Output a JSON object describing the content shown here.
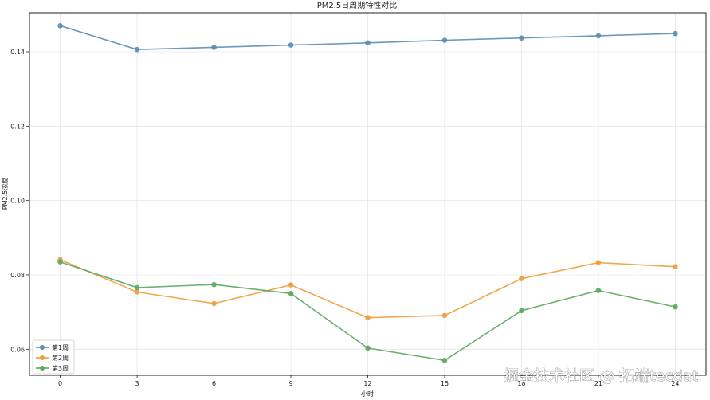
{
  "chart_data": {
    "type": "line",
    "title": "PM2.5日周期特性对比",
    "xlabel": "小时",
    "ylabel": "PM2.5浓度",
    "x": [
      0,
      3,
      6,
      9,
      12,
      15,
      18,
      21,
      24
    ],
    "x_ticks": [
      "0",
      "3",
      "6",
      "9",
      "12",
      "15",
      "18",
      "21",
      "24"
    ],
    "y_ticks": [
      "0.06",
      "0.08",
      "0.10",
      "0.12",
      "0.14"
    ],
    "ylim": [
      0.053,
      0.1505
    ],
    "xlim": [
      -1.2,
      25.2
    ],
    "grid": true,
    "legend_position": "lower-left",
    "series": [
      {
        "name": "第1周",
        "color": "#5b8db4",
        "values": [
          0.147,
          0.1406,
          0.1412,
          0.1418,
          0.1424,
          0.1431,
          0.1437,
          0.1443,
          0.1449
        ]
      },
      {
        "name": "第2周",
        "color": "#ef9d3c",
        "values": [
          0.0841,
          0.0754,
          0.0723,
          0.0773,
          0.0685,
          0.0691,
          0.079,
          0.0833,
          0.0822
        ]
      },
      {
        "name": "第3周",
        "color": "#5aa960",
        "values": [
          0.0835,
          0.0766,
          0.0774,
          0.075,
          0.0603,
          0.057,
          0.0704,
          0.0758,
          0.0714
        ]
      }
    ]
  },
  "watermark": "掘金技术社区 @ 拓端tecdat"
}
